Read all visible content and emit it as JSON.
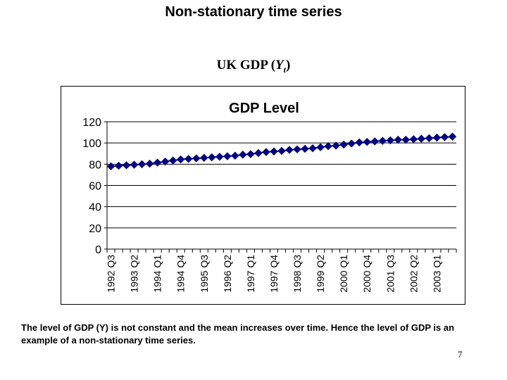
{
  "slide": {
    "title": "Non-stationary time series",
    "subtitle_prefix": "UK GDP (",
    "subtitle_symbol": "Y",
    "subtitle_subscript": "t",
    "subtitle_suffix": ")",
    "note": "The level of GDP (Y)  is not constant and the mean increases over time. Hence the level of GDP is an example of a non-stationary time series.",
    "page_number": "7"
  },
  "chart_data": {
    "type": "line",
    "title": "GDP Level",
    "xlabel": "",
    "ylabel": "",
    "ylim": [
      0,
      120
    ],
    "yticks": [
      0,
      20,
      40,
      60,
      80,
      100,
      120
    ],
    "grid": true,
    "legend": "none",
    "marker": "diamond",
    "color": "#000080",
    "categories": [
      "1992 Q3",
      "1992 Q4",
      "1993 Q1",
      "1993 Q2",
      "1993 Q3",
      "1993 Q4",
      "1994 Q1",
      "1994 Q2",
      "1994 Q3",
      "1994 Q4",
      "1995 Q1",
      "1995 Q2",
      "1995 Q3",
      "1995 Q4",
      "1996 Q1",
      "1996 Q2",
      "1996 Q3",
      "1996 Q4",
      "1997 Q1",
      "1997 Q2",
      "1997 Q3",
      "1997 Q4",
      "1998 Q1",
      "1998 Q2",
      "1998 Q3",
      "1998 Q4",
      "1999 Q1",
      "1999 Q2",
      "1999 Q3",
      "1999 Q4",
      "2000 Q1",
      "2000 Q2",
      "2000 Q3",
      "2000 Q4",
      "2001 Q1",
      "2001 Q2",
      "2001 Q3",
      "2001 Q4",
      "2002 Q1",
      "2002 Q2",
      "2002 Q3",
      "2002 Q4",
      "2003 Q1",
      "2003 Q2",
      "2003 Q3"
    ],
    "tick_labels": [
      "1992 Q3",
      "1993 Q2",
      "1994 Q1",
      "1994 Q4",
      "1995 Q3",
      "1996 Q2",
      "1997 Q1",
      "1997 Q4",
      "1998 Q3",
      "1999 Q2",
      "2000 Q1",
      "2000 Q4",
      "2001 Q3",
      "2002 Q2",
      "2003 Q1"
    ],
    "values": [
      78,
      78.5,
      79,
      79.5,
      80,
      80.5,
      81.5,
      82.5,
      83.5,
      84.5,
      85,
      85.5,
      86,
      86.5,
      87,
      87.5,
      88,
      89,
      89.5,
      90.5,
      91.5,
      92,
      92.5,
      93.5,
      94,
      94.5,
      95,
      96,
      97,
      97.5,
      98.5,
      99.5,
      100.5,
      101,
      101.5,
      102,
      102.5,
      103,
      103,
      103.5,
      104,
      104.5,
      105,
      105.5,
      106
    ]
  }
}
